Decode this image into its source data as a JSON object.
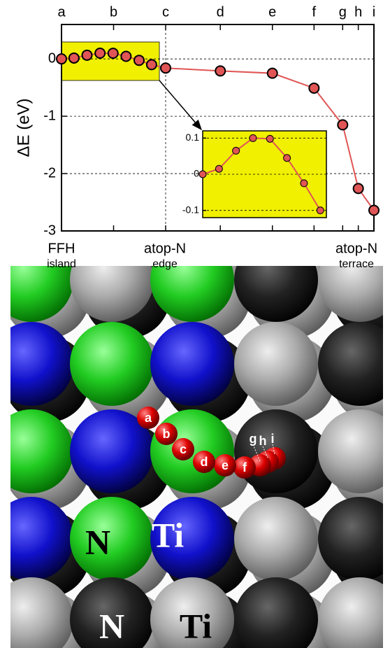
{
  "chart_data": [
    {
      "type": "line",
      "y_label": "ΔE (eV)",
      "x": [
        0,
        0.24,
        0.49,
        0.74,
        0.99,
        1.24,
        1.49,
        1.73,
        2,
        3.05,
        4.05,
        4.85,
        5.4,
        5.7,
        6
      ],
      "series": [
        {
          "name": "path",
          "color": "#e05555",
          "values": [
            0,
            0.015,
            0.065,
            0.1,
            0.098,
            0.045,
            -0.025,
            -0.1,
            -0.16,
            -0.21,
            -0.25,
            -0.51,
            -1.15,
            -2.26,
            -2.64
          ]
        }
      ],
      "xlim": [
        0,
        6
      ],
      "ylim": [
        -3,
        0.6
      ],
      "xticks": [
        {
          "value": 0,
          "label": "a"
        },
        {
          "value": 1,
          "label": "b"
        },
        {
          "value": 2,
          "label": "c"
        },
        {
          "value": 3.05,
          "label": "d"
        },
        {
          "value": 4.05,
          "label": "e"
        },
        {
          "value": 4.85,
          "label": "f"
        },
        {
          "value": 5.4,
          "label": "g"
        },
        {
          "value": 5.7,
          "label": "h"
        },
        {
          "value": 6,
          "label": "i"
        }
      ],
      "yticks": [
        0,
        -1,
        -2,
        -3
      ],
      "grid": true,
      "annotations": [
        {
          "text": "FFH",
          "subtext": "island"
        },
        {
          "text": "atop-N",
          "subtext": "edge"
        },
        {
          "text": "atop-N",
          "subtext": "terrace"
        }
      ]
    },
    {
      "type": "line",
      "x": [
        0,
        0.24,
        0.49,
        0.74,
        0.99,
        1.24,
        1.49,
        1.73
      ],
      "series": [
        {
          "name": "inset",
          "color": "#e05555",
          "values": [
            0,
            0.015,
            0.065,
            0.1,
            0.098,
            0.045,
            -0.025,
            -0.1
          ]
        }
      ],
      "xlim": [
        0,
        1.82
      ],
      "ylim": [
        -0.12,
        0.12
      ],
      "yticks": [
        0.1,
        0,
        -0.1
      ],
      "grid": true,
      "background": "#f0f000"
    }
  ],
  "image": {
    "atom_labels": [
      "N",
      "Ti",
      "N",
      "Ti"
    ],
    "path_labels": [
      "a",
      "b",
      "c",
      "d",
      "e",
      "f",
      "g",
      "h",
      "i"
    ]
  }
}
